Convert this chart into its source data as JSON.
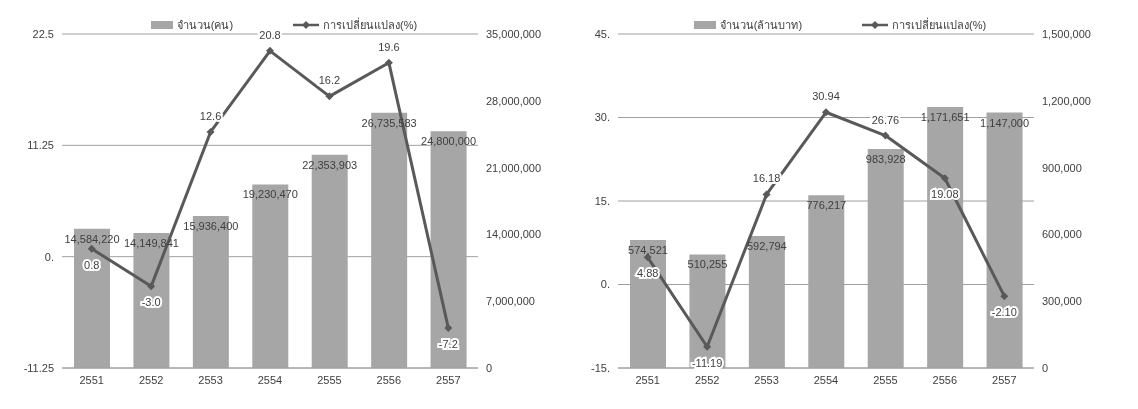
{
  "chart_data": [
    {
      "type": "bar",
      "categories": [
        "2551",
        "2552",
        "2553",
        "2554",
        "2555",
        "2556",
        "2557"
      ],
      "legend": "top",
      "grid": "y",
      "marker": "diamond",
      "ylim": [
        -11.25,
        22.5
      ],
      "yticks": [
        -11.25,
        {
          "value": 0,
          "label": "0."
        },
        11.25,
        22.5
      ],
      "y2lim": [
        0,
        35000000
      ],
      "y2ticks": [
        0,
        {
          "value": 7000000,
          "label": "7,000,000"
        },
        {
          "value": 14000000,
          "label": "14,000,000"
        },
        {
          "value": 21000000,
          "label": "21,000,000"
        },
        {
          "value": 28000000,
          "label": "28,000,000"
        },
        {
          "value": 35000000,
          "label": "35,000,000"
        }
      ],
      "series": [
        {
          "name": "จำนวน(คน)",
          "axis": "y2",
          "color": "#a6a6a6",
          "values": [
            14584220,
            14149841,
            15936400,
            19230470,
            22353903,
            26735583,
            24800000
          ],
          "value_labels": [
            "14,584,220",
            "14,149,841",
            "15,936,400",
            "19,230,470",
            "22,353,903",
            "26,735,583",
            "24,800,000"
          ]
        },
        {
          "name": "การเปลี่ยนแปลง(%)",
          "type": "line",
          "axis": "y",
          "color": "#595959",
          "values": [
            0.8,
            -3.0,
            12.6,
            20.8,
            16.2,
            19.6,
            -7.2
          ],
          "value_labels": [
            "0.8",
            "-3.0",
            "12.6",
            "20.8",
            "16.2",
            "19.6",
            "-7.2"
          ]
        }
      ]
    },
    {
      "type": "bar",
      "categories": [
        "2551",
        "2552",
        "2553",
        "2554",
        "2555",
        "2556",
        "2557"
      ],
      "legend": "top",
      "grid": "y",
      "marker": "diamond",
      "ylim": [
        -15,
        45
      ],
      "yticks": [
        {
          "value": -15,
          "label": "-15."
        },
        {
          "value": 0,
          "label": "0."
        },
        {
          "value": 15,
          "label": "15."
        },
        {
          "value": 30,
          "label": "30."
        },
        {
          "value": 45,
          "label": "45."
        }
      ],
      "y2lim": [
        0,
        1500000
      ],
      "y2ticks": [
        0,
        {
          "value": 300000,
          "label": "300,000"
        },
        {
          "value": 600000,
          "label": "600,000"
        },
        {
          "value": 900000,
          "label": "900,000"
        },
        {
          "value": 1200000,
          "label": "1,200,000"
        },
        {
          "value": 1500000,
          "label": "1,500,000"
        }
      ],
      "series": [
        {
          "name": "จำนวน(ล้านบาท)",
          "axis": "y2",
          "color": "#a6a6a6",
          "values": [
            574521,
            510255,
            592794,
            776217,
            983928,
            1171651,
            1147000
          ],
          "value_labels": [
            "574,521",
            "510,255",
            "592,794",
            "776,217",
            "983,928",
            "1,171,651",
            "1,147,000"
          ]
        },
        {
          "name": "การเปลี่ยนแปลง(%)",
          "type": "line",
          "axis": "y",
          "color": "#595959",
          "values": [
            4.88,
            -11.19,
            16.18,
            30.94,
            26.76,
            19.08,
            -2.1
          ],
          "value_labels": [
            "4.88",
            "-11.19",
            "16.18",
            "30.94",
            "26.76",
            "19.08",
            "-2.10"
          ]
        }
      ]
    }
  ]
}
